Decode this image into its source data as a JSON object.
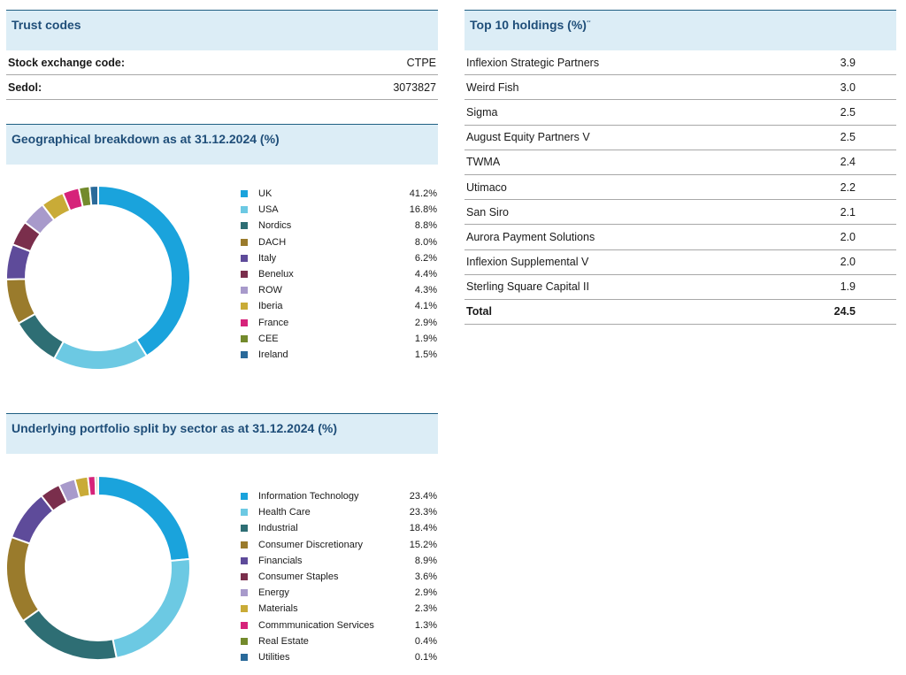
{
  "trust_codes": {
    "title": "Trust codes",
    "rows": [
      {
        "label": "Stock exchange code:",
        "value": "CTPE"
      },
      {
        "label": "Sedol:",
        "value": "3073827"
      }
    ]
  },
  "top_holdings": {
    "title": "Top 10 holdings (%)",
    "title_note": "**",
    "rows": [
      {
        "name": "Inflexion Strategic Partners",
        "value": "3.9"
      },
      {
        "name": "Weird Fish",
        "value": "3.0"
      },
      {
        "name": "Sigma",
        "value": "2.5"
      },
      {
        "name": "August Equity Partners V",
        "value": "2.5"
      },
      {
        "name": "TWMA",
        "value": "2.4"
      },
      {
        "name": "Utimaco",
        "value": "2.2"
      },
      {
        "name": "San Siro",
        "value": "2.1"
      },
      {
        "name": "Aurora Payment Solutions",
        "value": "2.0"
      },
      {
        "name": "Inflexion Supplemental V",
        "value": "2.0"
      },
      {
        "name": "Sterling Square Capital II",
        "value": "1.9"
      }
    ],
    "total_label": "Total",
    "total_value": "24.5"
  },
  "chart_data": [
    {
      "type": "pie",
      "title": "Geographical breakdown as at 31.12.2024 (%)",
      "categories": [
        "UK",
        "USA",
        "Nordics",
        "DACH",
        "Italy",
        "Benelux",
        "ROW",
        "Iberia",
        "France",
        "CEE",
        "Ireland"
      ],
      "values": [
        41.2,
        16.8,
        8.8,
        8.0,
        6.2,
        4.4,
        4.3,
        4.1,
        2.9,
        1.9,
        1.5
      ],
      "value_labels": [
        "41.2%",
        "16.8%",
        "8.8%",
        "8.0%",
        "6.2%",
        "4.4%",
        "4.3%",
        "4.1%",
        "2.9%",
        "1.9%",
        "1.5%"
      ],
      "colors": [
        "#1aa3dc",
        "#6cc9e3",
        "#2e6e74",
        "#9a7b2c",
        "#5e4b9a",
        "#7a2e4c",
        "#a89acb",
        "#c9ab37",
        "#d6237a",
        "#738a2c",
        "#2a6a9a"
      ],
      "donut": true,
      "legend_position": "right"
    },
    {
      "type": "pie",
      "title": "Underlying portfolio split by sector as at 31.12.2024 (%)",
      "categories": [
        "Information Technology",
        "Health Care",
        "Industrial",
        "Consumer Discretionary",
        "Financials",
        "Consumer Staples",
        "Energy",
        "Materials",
        "Commmunication Services",
        "Real Estate",
        "Utilities"
      ],
      "values": [
        23.4,
        23.3,
        18.4,
        15.2,
        8.9,
        3.6,
        2.9,
        2.3,
        1.3,
        0.4,
        0.1
      ],
      "value_labels": [
        "23.4%",
        "23.3%",
        "18.4%",
        "15.2%",
        "8.9%",
        "3.6%",
        "2.9%",
        "2.3%",
        "1.3%",
        "0.4%",
        "0.1%"
      ],
      "colors": [
        "#1aa3dc",
        "#6cc9e3",
        "#2e6e74",
        "#9a7b2c",
        "#5e4b9a",
        "#7a2e4c",
        "#a89acb",
        "#c9ab37",
        "#d6237a",
        "#738a2c",
        "#2a6a9a"
      ],
      "donut": true,
      "legend_position": "right"
    }
  ]
}
